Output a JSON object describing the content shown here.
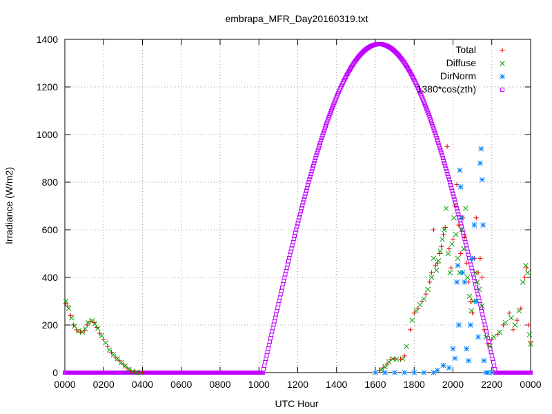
{
  "chart_data": {
    "type": "scatter",
    "title": "embrapa_MFR_Day20160319.txt",
    "xlabel": "UTC Hour",
    "ylabel": "Irradiance (W/m2)",
    "xlim": [
      0,
      24
    ],
    "ylim": [
      0,
      1400
    ],
    "grid": true,
    "legend_position": "top-right",
    "x_tick_values": [
      0,
      2,
      4,
      6,
      8,
      10,
      12,
      14,
      16,
      18,
      20,
      22,
      24
    ],
    "x_tick_labels": [
      "0000",
      "0200",
      "0400",
      "0600",
      "0800",
      "1000",
      "1200",
      "1400",
      "1600",
      "1800",
      "2000",
      "2200",
      "0000"
    ],
    "y_tick_values": [
      0,
      200,
      400,
      600,
      800,
      1000,
      1200,
      1400
    ],
    "y_tick_labels": [
      "0",
      "200",
      "400",
      "600",
      "800",
      "1000",
      "1200",
      "1400"
    ],
    "series": [
      {
        "name": "Total",
        "marker": "plus",
        "color": "#e00000",
        "points": [
          [
            0.05,
            290
          ],
          [
            0.15,
            280
          ],
          [
            0.3,
            240
          ],
          [
            0.45,
            200
          ],
          [
            0.6,
            180
          ],
          [
            0.8,
            170
          ],
          [
            1.0,
            175
          ],
          [
            1.15,
            200
          ],
          [
            1.3,
            215
          ],
          [
            1.5,
            210
          ],
          [
            1.65,
            190
          ],
          [
            1.8,
            165
          ],
          [
            2.0,
            140
          ],
          [
            2.2,
            110
          ],
          [
            2.4,
            85
          ],
          [
            2.6,
            65
          ],
          [
            2.8,
            50
          ],
          [
            3.0,
            35
          ],
          [
            3.2,
            20
          ],
          [
            3.4,
            8
          ],
          [
            3.6,
            2
          ],
          [
            3.8,
            0
          ],
          [
            4.0,
            0
          ],
          [
            16.2,
            10
          ],
          [
            16.4,
            20
          ],
          [
            16.6,
            35
          ],
          [
            16.8,
            55
          ],
          [
            17.0,
            58
          ],
          [
            17.3,
            55
          ],
          [
            17.5,
            70
          ],
          [
            17.8,
            180
          ],
          [
            18.0,
            250
          ],
          [
            18.2,
            270
          ],
          [
            18.4,
            300
          ],
          [
            18.6,
            330
          ],
          [
            18.8,
            380
          ],
          [
            18.9,
            420
          ],
          [
            19.0,
            600
          ],
          [
            19.1,
            450
          ],
          [
            19.2,
            460
          ],
          [
            19.3,
            500
          ],
          [
            19.4,
            530
          ],
          [
            19.5,
            580
          ],
          [
            19.6,
            610
          ],
          [
            19.7,
            950
          ],
          [
            19.8,
            520
          ],
          [
            19.9,
            440
          ],
          [
            20.0,
            560
          ],
          [
            20.1,
            700
          ],
          [
            20.2,
            790
          ],
          [
            20.3,
            620
          ],
          [
            20.4,
            500
          ],
          [
            20.5,
            650
          ],
          [
            20.6,
            570
          ],
          [
            20.7,
            460
          ],
          [
            20.8,
            380
          ],
          [
            20.9,
            300
          ],
          [
            21.0,
            250
          ],
          [
            21.1,
            480
          ],
          [
            21.2,
            650
          ],
          [
            21.3,
            420
          ],
          [
            21.4,
            480
          ],
          [
            21.5,
            400
          ],
          [
            21.6,
            180
          ],
          [
            21.8,
            120
          ],
          [
            22.0,
            140
          ],
          [
            22.3,
            160
          ],
          [
            22.6,
            200
          ],
          [
            22.9,
            250
          ],
          [
            23.1,
            180
          ],
          [
            23.3,
            220
          ],
          [
            23.5,
            270
          ],
          [
            23.7,
            400
          ],
          [
            23.8,
            440
          ],
          [
            23.9,
            200
          ],
          [
            24.0,
            130
          ]
        ]
      },
      {
        "name": "Diffuse",
        "marker": "cross",
        "color": "#00a000",
        "points": [
          [
            0.05,
            300
          ],
          [
            0.2,
            270
          ],
          [
            0.35,
            230
          ],
          [
            0.5,
            195
          ],
          [
            0.7,
            175
          ],
          [
            0.9,
            170
          ],
          [
            1.05,
            185
          ],
          [
            1.2,
            210
          ],
          [
            1.4,
            218
          ],
          [
            1.55,
            205
          ],
          [
            1.7,
            185
          ],
          [
            1.9,
            155
          ],
          [
            2.1,
            125
          ],
          [
            2.3,
            95
          ],
          [
            2.5,
            75
          ],
          [
            2.7,
            58
          ],
          [
            2.9,
            42
          ],
          [
            3.1,
            28
          ],
          [
            3.3,
            14
          ],
          [
            3.5,
            5
          ],
          [
            3.7,
            1
          ],
          [
            3.9,
            0
          ],
          [
            16.3,
            12
          ],
          [
            16.5,
            25
          ],
          [
            16.7,
            45
          ],
          [
            16.9,
            58
          ],
          [
            17.1,
            56
          ],
          [
            17.4,
            58
          ],
          [
            17.6,
            110
          ],
          [
            17.9,
            220
          ],
          [
            18.1,
            260
          ],
          [
            18.3,
            285
          ],
          [
            18.5,
            310
          ],
          [
            18.7,
            350
          ],
          [
            18.9,
            400
          ],
          [
            19.0,
            480
          ],
          [
            19.15,
            430
          ],
          [
            19.25,
            470
          ],
          [
            19.35,
            510
          ],
          [
            19.45,
            560
          ],
          [
            19.55,
            600
          ],
          [
            19.65,
            690
          ],
          [
            19.75,
            500
          ],
          [
            19.85,
            420
          ],
          [
            19.95,
            540
          ],
          [
            20.05,
            650
          ],
          [
            20.15,
            580
          ],
          [
            20.25,
            480
          ],
          [
            20.35,
            420
          ],
          [
            20.45,
            600
          ],
          [
            20.55,
            520
          ],
          [
            20.65,
            690
          ],
          [
            20.75,
            400
          ],
          [
            20.85,
            320
          ],
          [
            20.95,
            260
          ],
          [
            21.05,
            300
          ],
          [
            21.15,
            420
          ],
          [
            21.25,
            380
          ],
          [
            21.35,
            350
          ],
          [
            21.5,
            280
          ],
          [
            21.7,
            150
          ],
          [
            21.9,
            110
          ],
          [
            22.1,
            150
          ],
          [
            22.4,
            170
          ],
          [
            22.7,
            210
          ],
          [
            23.0,
            230
          ],
          [
            23.2,
            200
          ],
          [
            23.4,
            260
          ],
          [
            23.6,
            380
          ],
          [
            23.75,
            450
          ],
          [
            23.85,
            420
          ],
          [
            23.95,
            160
          ],
          [
            24.0,
            120
          ]
        ]
      },
      {
        "name": "DirNorm",
        "marker": "star",
        "color": "#0080ff",
        "points": [
          [
            16.0,
            0
          ],
          [
            16.5,
            0
          ],
          [
            17.0,
            0
          ],
          [
            17.5,
            0
          ],
          [
            18.0,
            0
          ],
          [
            18.5,
            0
          ],
          [
            19.0,
            0
          ],
          [
            19.2,
            10
          ],
          [
            19.5,
            30
          ],
          [
            19.8,
            20
          ],
          [
            20.0,
            100
          ],
          [
            20.1,
            60
          ],
          [
            20.2,
            380
          ],
          [
            20.25,
            450
          ],
          [
            20.3,
            200
          ],
          [
            20.35,
            850
          ],
          [
            20.4,
            780
          ],
          [
            20.45,
            650
          ],
          [
            20.5,
            420
          ],
          [
            20.6,
            380
          ],
          [
            20.7,
            100
          ],
          [
            20.8,
            50
          ],
          [
            20.9,
            200
          ],
          [
            21.0,
            480
          ],
          [
            21.1,
            620
          ],
          [
            21.2,
            300
          ],
          [
            21.3,
            150
          ],
          [
            21.4,
            880
          ],
          [
            21.45,
            940
          ],
          [
            21.5,
            810
          ],
          [
            21.55,
            620
          ],
          [
            21.6,
            50
          ],
          [
            21.7,
            0
          ],
          [
            21.8,
            0
          ],
          [
            22.0,
            0
          ]
        ]
      },
      {
        "name": "1380*cos(zth)",
        "marker": "square",
        "color": "#c000ff",
        "formula": "1380*cos(zth)",
        "peak": 1380,
        "peak_x": 16.2,
        "zero_start": 10.2,
        "zero_end": 22.2
      }
    ]
  }
}
